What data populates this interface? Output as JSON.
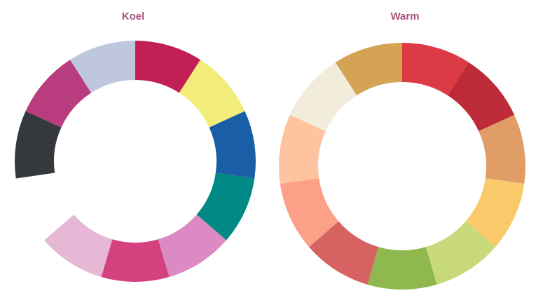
{
  "chart_data": [
    {
      "type": "donut",
      "title": "Koel",
      "values": [
        1,
        1,
        1,
        1,
        1,
        1,
        1,
        1,
        1,
        1,
        1
      ],
      "colors": [
        "#c21f55",
        "#f2ec7a",
        "#1a5ea8",
        "#008985",
        "#db8ac4",
        "#d4417f",
        "#e6b8d6",
        "#ffffff",
        "#35383d",
        "#b93c7e",
        "#bec7dc"
      ]
    },
    {
      "type": "donut",
      "title": "Warm",
      "values": [
        1,
        1,
        1,
        1,
        1,
        1,
        1,
        1,
        1,
        1,
        1
      ],
      "colors": [
        "#dc3a45",
        "#bd2a38",
        "#e09d65",
        "#fac96a",
        "#c8d97b",
        "#8fb84e",
        "#d66262",
        "#fca188",
        "#fec39f",
        "#f2ecdb",
        "#d4a354"
      ]
    }
  ]
}
